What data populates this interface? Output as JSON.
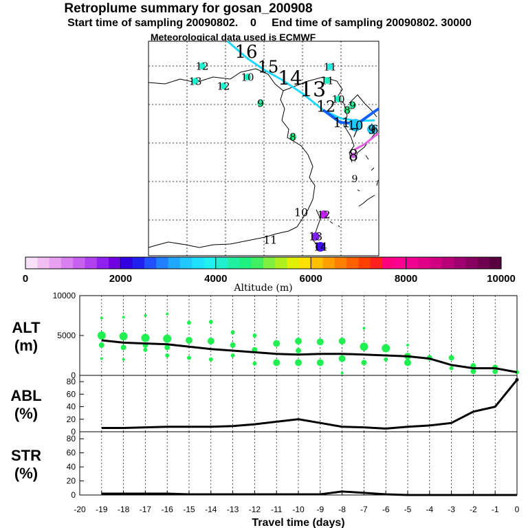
{
  "header": {
    "title": "Retroplume summary for gosan_200908",
    "sampling": "Start time of sampling 20090802.    0     End time of sampling 20090802. 30000",
    "met": "Meteorological data used is ECMWF"
  },
  "colorbar": {
    "ticks": [
      "0",
      "2000",
      "4000",
      "6000",
      "8000",
      "10000"
    ],
    "label": "Altitude (m)",
    "colors": [
      "#f8e0f8",
      "#f0c0f0",
      "#e8a0f0",
      "#d880f0",
      "#c860f0",
      "#b040f0",
      "#9020f0",
      "#7000e0",
      "#3000e0",
      "#2020f0",
      "#2050ff",
      "#2080ff",
      "#20a8ff",
      "#20c8ff",
      "#20e0ff",
      "#20f0f0",
      "#20f0d0",
      "#20f0a0",
      "#20f080",
      "#40f060",
      "#80f040",
      "#b0f020",
      "#e0f000",
      "#ffe000",
      "#ffc000",
      "#ffa000",
      "#ff8000",
      "#ff6000",
      "#ff4000",
      "#ff2020",
      "#ff0080",
      "#ff0090",
      "#f00090",
      "#e00088",
      "#d00080",
      "#b80078",
      "#a00070",
      "#880060",
      "#700050",
      "#580040"
    ]
  },
  "map": {
    "labels": [
      {
        "t": "16",
        "c": "#000000"
      },
      {
        "t": "15",
        "c": "#000000"
      },
      {
        "t": "14",
        "c": "#000000"
      },
      {
        "t": "13",
        "c": "#000000"
      },
      {
        "t": "12",
        "c": "#000000"
      },
      {
        "t": "11",
        "c": "#000000"
      },
      {
        "t": "10",
        "c": "#000000"
      },
      {
        "t": "9",
        "c": "#000000"
      },
      {
        "t": "11",
        "c": "#000000"
      },
      {
        "t": "13",
        "c": "#000000"
      },
      {
        "t": "12",
        "c": "#000000"
      },
      {
        "t": "10",
        "c": "#000000"
      },
      {
        "t": "9",
        "c": "#000000"
      },
      {
        "t": "8",
        "c": "#000000"
      },
      {
        "t": "12",
        "c": "#000000"
      },
      {
        "t": "11",
        "c": "#000000"
      },
      {
        "t": "10",
        "c": "#000000"
      },
      {
        "t": "9",
        "c": "#000000"
      },
      {
        "t": "8",
        "c": "#000000"
      },
      {
        "t": "7",
        "c": "#000000"
      },
      {
        "t": "6",
        "c": "#000000"
      },
      {
        "t": "9",
        "c": "#000000"
      },
      {
        "t": "8",
        "c": "#000000"
      },
      {
        "t": "10",
        "c": "#000000"
      },
      {
        "t": "12",
        "c": "#000000"
      },
      {
        "t": "11",
        "c": "#000000"
      },
      {
        "t": "13",
        "c": "#000000"
      },
      {
        "t": "14",
        "c": "#000000"
      }
    ]
  },
  "chart_data": [
    {
      "type": "scatter",
      "panel": "ALT",
      "ylabel": "ALT\n(m)",
      "ylabel_line1": "ALT",
      "ylabel_line2": "(m)",
      "ylim": [
        0,
        10000
      ],
      "yticks": [
        "0",
        "5000",
        "10000"
      ],
      "mean_line": {
        "x": [
          -19,
          -18,
          -17,
          -16,
          -15,
          -14,
          -13,
          -12,
          -11,
          -10,
          -9,
          -8,
          -7,
          -6,
          -5,
          -4,
          -3,
          -2,
          -1,
          0
        ],
        "y": [
          4400,
          4100,
          4000,
          3900,
          3600,
          3300,
          3100,
          2900,
          2700,
          2600,
          2700,
          2700,
          2600,
          2500,
          2400,
          2100,
          1300,
          900,
          900,
          400
        ]
      },
      "points": [
        {
          "x": -19,
          "y": 7200,
          "s": 2
        },
        {
          "x": -19,
          "y": 5000,
          "s": 6
        },
        {
          "x": -19,
          "y": 3800,
          "s": 4
        },
        {
          "x": -19,
          "y": 2100,
          "s": 2
        },
        {
          "x": -18,
          "y": 7300,
          "s": 2
        },
        {
          "x": -18,
          "y": 4900,
          "s": 6
        },
        {
          "x": -18,
          "y": 3500,
          "s": 4
        },
        {
          "x": -18,
          "y": 2000,
          "s": 2
        },
        {
          "x": -17,
          "y": 7500,
          "s": 2
        },
        {
          "x": -17,
          "y": 4700,
          "s": 6
        },
        {
          "x": -17,
          "y": 3800,
          "s": 4
        },
        {
          "x": -17,
          "y": 3200,
          "s": 3
        },
        {
          "x": -16,
          "y": 7700,
          "s": 2
        },
        {
          "x": -16,
          "y": 4600,
          "s": 6
        },
        {
          "x": -16,
          "y": 3500,
          "s": 4
        },
        {
          "x": -16,
          "y": 2500,
          "s": 3
        },
        {
          "x": -15,
          "y": 6600,
          "s": 3
        },
        {
          "x": -15,
          "y": 4400,
          "s": 5
        },
        {
          "x": -15,
          "y": 2200,
          "s": 3
        },
        {
          "x": -14,
          "y": 6700,
          "s": 3
        },
        {
          "x": -14,
          "y": 4300,
          "s": 5
        },
        {
          "x": -14,
          "y": 2000,
          "s": 3
        },
        {
          "x": -13,
          "y": 5400,
          "s": 3
        },
        {
          "x": -13,
          "y": 3800,
          "s": 4
        },
        {
          "x": -13,
          "y": 2500,
          "s": 3
        },
        {
          "x": -12,
          "y": 5000,
          "s": 3
        },
        {
          "x": -12,
          "y": 3200,
          "s": 4
        },
        {
          "x": -12,
          "y": 1500,
          "s": 3
        },
        {
          "x": -11,
          "y": 4000,
          "s": 5
        },
        {
          "x": -11,
          "y": 1600,
          "s": 5
        },
        {
          "x": -10,
          "y": 4300,
          "s": 5
        },
        {
          "x": -10,
          "y": 3100,
          "s": 4
        },
        {
          "x": -10,
          "y": 1600,
          "s": 5
        },
        {
          "x": -9,
          "y": 4200,
          "s": 5
        },
        {
          "x": -9,
          "y": 1600,
          "s": 5
        },
        {
          "x": -8,
          "y": 4300,
          "s": 5
        },
        {
          "x": -8,
          "y": 2100,
          "s": 5
        },
        {
          "x": -8,
          "y": 300,
          "s": 2
        },
        {
          "x": -7,
          "y": 5900,
          "s": 2
        },
        {
          "x": -7,
          "y": 3600,
          "s": 6
        },
        {
          "x": -7,
          "y": 1600,
          "s": 4
        },
        {
          "x": -6,
          "y": 3400,
          "s": 6
        },
        {
          "x": -6,
          "y": 2000,
          "s": 3
        },
        {
          "x": -5,
          "y": 3800,
          "s": 2
        },
        {
          "x": -5,
          "y": 2400,
          "s": 5
        },
        {
          "x": -5,
          "y": 1600,
          "s": 5
        },
        {
          "x": -4,
          "y": 2200,
          "s": 4
        },
        {
          "x": -3,
          "y": 2200,
          "s": 4
        },
        {
          "x": -3,
          "y": 900,
          "s": 3
        },
        {
          "x": -2,
          "y": 1200,
          "s": 4
        },
        {
          "x": -2,
          "y": 500,
          "s": 4
        },
        {
          "x": -1,
          "y": 1000,
          "s": 4
        },
        {
          "x": -1,
          "y": 500,
          "s": 4
        },
        {
          "x": 0,
          "y": 400,
          "s": 3
        }
      ]
    },
    {
      "type": "line",
      "panel": "ABL",
      "ylabel_line1": "ABL",
      "ylabel_line2": "(%)",
      "ylim": [
        0,
        90
      ],
      "yticks": [
        "0",
        "20",
        "40",
        "60",
        "80"
      ],
      "x": [
        -19,
        -18,
        -17,
        -16,
        -15,
        -14,
        -13,
        -12,
        -11,
        -10,
        -9,
        -8,
        -7,
        -6,
        -5,
        -4,
        -3,
        -2,
        -1,
        0
      ],
      "y": [
        6,
        6,
        7,
        8,
        8,
        8,
        9,
        12,
        16,
        20,
        14,
        8,
        7,
        5,
        8,
        10,
        14,
        32,
        40,
        83
      ]
    },
    {
      "type": "line",
      "panel": "STR",
      "ylabel_line1": "STR",
      "ylabel_line2": "(%)",
      "ylim": [
        0,
        90
      ],
      "yticks": [
        "0",
        "20",
        "40",
        "60",
        "80"
      ],
      "x": [
        -19,
        -18,
        -17,
        -16,
        -15,
        -14,
        -13,
        -12,
        -11,
        -10,
        -9,
        -8,
        -7,
        -6,
        -5,
        -4,
        -3,
        -2,
        -1,
        0
      ],
      "y": [
        2,
        2,
        2,
        2,
        1,
        1,
        1,
        1,
        1,
        1,
        1,
        5,
        3,
        1,
        0,
        0,
        0,
        0,
        0,
        0
      ]
    },
    {
      "type": "axis",
      "xlabel": "Travel time (days)",
      "xticks": [
        "-20",
        "-19",
        "-18",
        "-17",
        "-16",
        "-15",
        "-14",
        "-13",
        "-12",
        "-11",
        "-10",
        "-9",
        "-8",
        "-7",
        "-6",
        "-5",
        "-4",
        "-3",
        "-2",
        "-1",
        "0"
      ]
    }
  ]
}
